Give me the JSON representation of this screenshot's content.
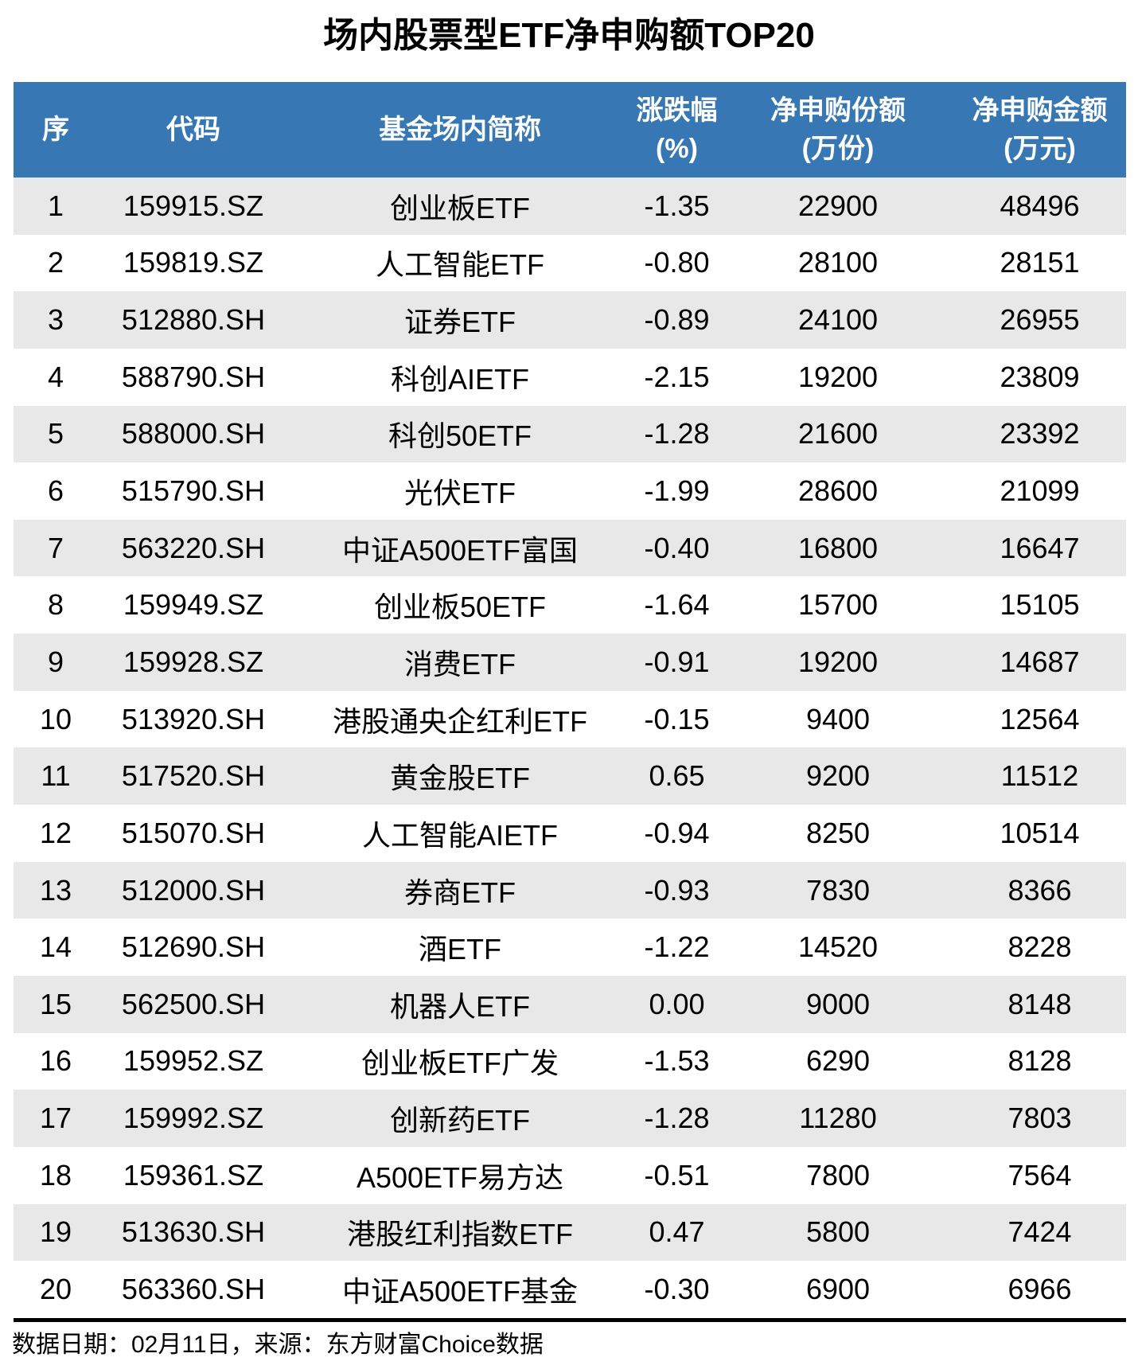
{
  "title": "场内股票型ETF净申购额TOP20",
  "footer": {
    "note": "数据日期：02月11日，来源：东方财富Choice数据"
  },
  "colors": {
    "header_bg": "#3778b4",
    "header_text": "#ffffff",
    "row_stripe": "#e8e8e8",
    "row_plain": "#ffffff",
    "text": "#000000",
    "divider": "#000000"
  },
  "chart_data": {
    "type": "table",
    "title": "场内股票型ETF净申购额TOP20",
    "columns": [
      {
        "key": "rank",
        "label": "序",
        "label2": ""
      },
      {
        "key": "code",
        "label": "代码",
        "label2": ""
      },
      {
        "key": "name",
        "label": "基金场内简称",
        "label2": ""
      },
      {
        "key": "change",
        "label": "涨跌幅",
        "label2": "(%)"
      },
      {
        "key": "shares",
        "label": "净申购份额",
        "label2": "(万份)"
      },
      {
        "key": "amount",
        "label": "净申购金额",
        "label2": "(万元)"
      }
    ],
    "rows": [
      [
        "1",
        "159915.SZ",
        "创业板ETF",
        "-1.35",
        "22900",
        "48496"
      ],
      [
        "2",
        "159819.SZ",
        "人工智能ETF",
        "-0.80",
        "28100",
        "28151"
      ],
      [
        "3",
        "512880.SH",
        "证券ETF",
        "-0.89",
        "24100",
        "26955"
      ],
      [
        "4",
        "588790.SH",
        "科创AIETF",
        "-2.15",
        "19200",
        "23809"
      ],
      [
        "5",
        "588000.SH",
        "科创50ETF",
        "-1.28",
        "21600",
        "23392"
      ],
      [
        "6",
        "515790.SH",
        "光伏ETF",
        "-1.99",
        "28600",
        "21099"
      ],
      [
        "7",
        "563220.SH",
        "中证A500ETF富国",
        "-0.40",
        "16800",
        "16647"
      ],
      [
        "8",
        "159949.SZ",
        "创业板50ETF",
        "-1.64",
        "15700",
        "15105"
      ],
      [
        "9",
        "159928.SZ",
        "消费ETF",
        "-0.91",
        "19200",
        "14687"
      ],
      [
        "10",
        "513920.SH",
        "港股通央企红利ETF",
        "-0.15",
        "9400",
        "12564"
      ],
      [
        "11",
        "517520.SH",
        "黄金股ETF",
        "0.65",
        "9200",
        "11512"
      ],
      [
        "12",
        "515070.SH",
        "人工智能AIETF",
        "-0.94",
        "8250",
        "10514"
      ],
      [
        "13",
        "512000.SH",
        "券商ETF",
        "-0.93",
        "7830",
        "8366"
      ],
      [
        "14",
        "512690.SH",
        "酒ETF",
        "-1.22",
        "14520",
        "8228"
      ],
      [
        "15",
        "562500.SH",
        "机器人ETF",
        "0.00",
        "9000",
        "8148"
      ],
      [
        "16",
        "159952.SZ",
        "创业板ETF广发",
        "-1.53",
        "6290",
        "8128"
      ],
      [
        "17",
        "159992.SZ",
        "创新药ETF",
        "-1.28",
        "11280",
        "7803"
      ],
      [
        "18",
        "159361.SZ",
        "A500ETF易方达",
        "-0.51",
        "7800",
        "7564"
      ],
      [
        "19",
        "513630.SH",
        "港股红利指数ETF",
        "0.47",
        "5800",
        "7424"
      ],
      [
        "20",
        "563360.SH",
        "中证A500ETF基金",
        "-0.30",
        "6900",
        "6966"
      ]
    ]
  }
}
